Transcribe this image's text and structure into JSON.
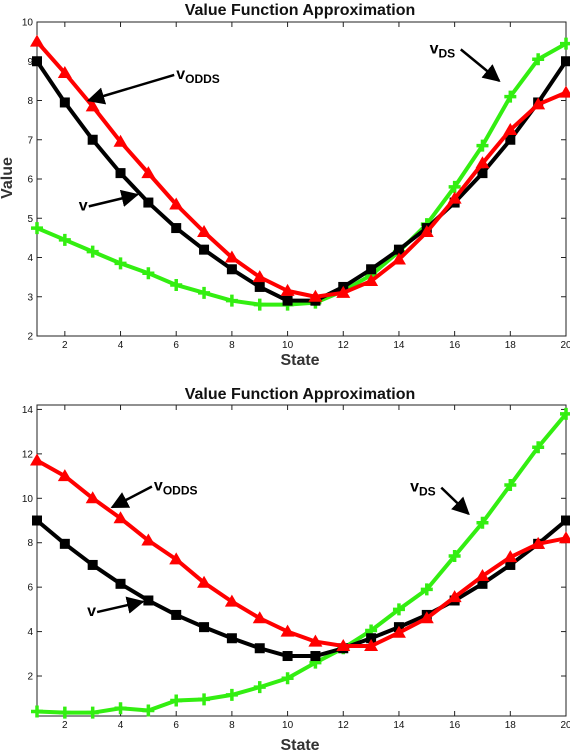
{
  "chart_data": [
    {
      "type": "line",
      "title": "Value Function Approximation",
      "xlabel": "State",
      "ylabel": "Value",
      "xlim": [
        1,
        20
      ],
      "ylim": [
        2,
        10
      ],
      "xticks": [
        2,
        4,
        6,
        8,
        10,
        12,
        14,
        16,
        18,
        20
      ],
      "yticks": [
        2,
        3,
        4,
        5,
        6,
        7,
        8,
        9,
        10
      ],
      "x": [
        1,
        2,
        3,
        4,
        5,
        6,
        7,
        8,
        9,
        10,
        11,
        12,
        13,
        14,
        15,
        16,
        17,
        18,
        19,
        20
      ],
      "series": [
        {
          "key": "v",
          "color": "#000000",
          "marker": "square",
          "values": [
            9.0,
            7.95,
            7.0,
            6.15,
            5.4,
            4.75,
            4.2,
            3.7,
            3.25,
            2.9,
            2.9,
            3.25,
            3.7,
            4.2,
            4.75,
            5.4,
            6.15,
            7.0,
            7.95,
            9.0
          ]
        },
        {
          "key": "v_odds",
          "color": "#ff0000",
          "marker": "triangle",
          "values": [
            9.5,
            8.7,
            7.85,
            6.95,
            6.15,
            5.35,
            4.65,
            4.0,
            3.5,
            3.15,
            3.0,
            3.1,
            3.4,
            3.95,
            4.65,
            5.5,
            6.4,
            7.25,
            7.9,
            8.2
          ]
        },
        {
          "key": "v_ds",
          "color": "#33ee11",
          "marker": "plus",
          "values": [
            4.75,
            4.45,
            4.15,
            3.85,
            3.6,
            3.3,
            3.1,
            2.9,
            2.8,
            2.8,
            2.85,
            3.15,
            3.55,
            4.15,
            4.85,
            5.8,
            6.85,
            8.1,
            9.05,
            9.45
          ]
        }
      ],
      "annotations": [
        {
          "key": "v_odds",
          "base": "v",
          "sub": "ODDS",
          "at": [
            6.0,
            8.55
          ],
          "arrow_to": [
            2.85,
            8.0
          ]
        },
        {
          "key": "v_ds",
          "base": "v",
          "sub": "DS",
          "at": [
            15.1,
            9.2
          ],
          "arrow_to": [
            17.6,
            8.5
          ]
        },
        {
          "key": "v",
          "base": "v",
          "sub": "",
          "at": [
            2.5,
            5.2
          ],
          "arrow_to": [
            4.6,
            5.6
          ]
        }
      ]
    },
    {
      "type": "line",
      "title": "Value Function Approximation",
      "xlabel": "State",
      "ylabel": "",
      "xlim": [
        1,
        20
      ],
      "ylim": [
        0.2,
        14.2
      ],
      "xticks": [
        2,
        4,
        6,
        8,
        10,
        12,
        14,
        16,
        18,
        20
      ],
      "yticks": [
        2,
        4,
        6,
        8,
        10,
        12,
        14
      ],
      "x": [
        1,
        2,
        3,
        4,
        5,
        6,
        7,
        8,
        9,
        10,
        11,
        12,
        13,
        14,
        15,
        16,
        17,
        18,
        19,
        20
      ],
      "series": [
        {
          "key": "v",
          "color": "#000000",
          "marker": "square",
          "values": [
            9.0,
            7.95,
            7.0,
            6.15,
            5.4,
            4.75,
            4.2,
            3.7,
            3.25,
            2.9,
            2.9,
            3.25,
            3.7,
            4.2,
            4.75,
            5.4,
            6.15,
            7.0,
            7.95,
            9.0
          ]
        },
        {
          "key": "v_odds",
          "color": "#ff0000",
          "marker": "triangle",
          "values": [
            11.7,
            11.0,
            10.0,
            9.1,
            8.1,
            7.25,
            6.2,
            5.35,
            4.6,
            4.0,
            3.55,
            3.35,
            3.35,
            3.95,
            4.6,
            5.55,
            6.5,
            7.35,
            7.95,
            8.2
          ]
        },
        {
          "key": "v_ds",
          "color": "#33ee11",
          "marker": "plus",
          "values": [
            0.4,
            0.35,
            0.35,
            0.55,
            0.45,
            0.9,
            0.95,
            1.15,
            1.5,
            1.9,
            2.6,
            3.25,
            4.05,
            5.0,
            5.9,
            7.4,
            8.9,
            10.6,
            12.3,
            13.8
          ]
        }
      ],
      "annotations": [
        {
          "key": "v_odds",
          "base": "v",
          "sub": "ODDS",
          "at": [
            5.2,
            10.35
          ],
          "arrow_to": [
            3.7,
            9.6
          ]
        },
        {
          "key": "v_ds",
          "base": "v",
          "sub": "DS",
          "at": [
            14.4,
            10.3
          ],
          "arrow_to": [
            16.5,
            9.3
          ]
        },
        {
          "key": "v",
          "base": "v",
          "sub": "",
          "at": [
            2.8,
            4.7
          ],
          "arrow_to": [
            4.8,
            5.35
          ]
        }
      ]
    }
  ]
}
